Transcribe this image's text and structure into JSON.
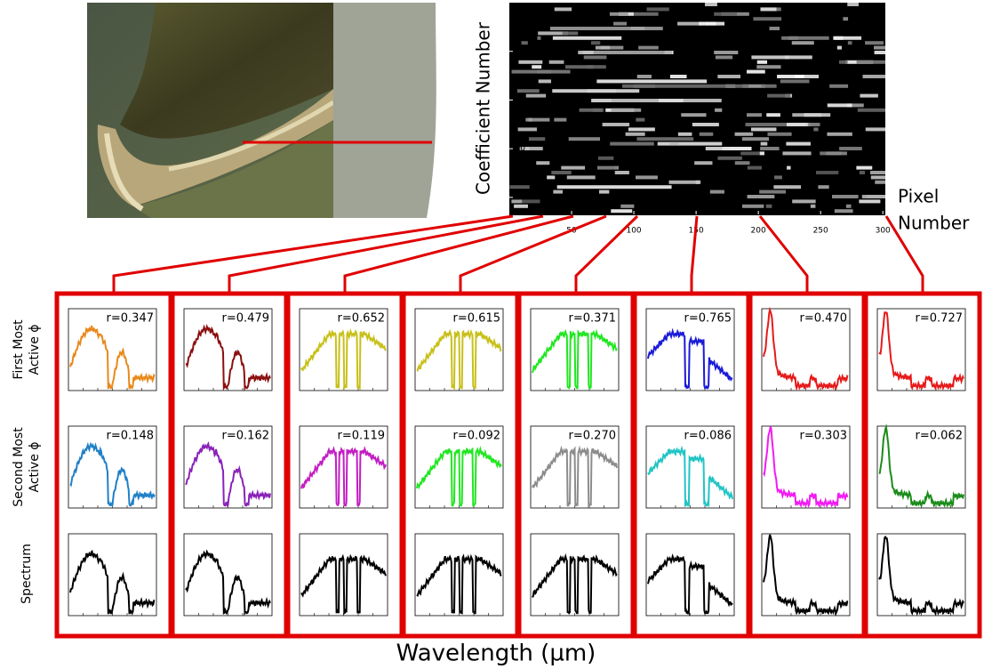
{
  "heatmap": {
    "y_label": "Coefficient Number",
    "x_label": [
      "Pixel",
      "Number"
    ],
    "xlim": [
      0,
      302
    ],
    "ylim": [
      0,
      43.5
    ],
    "xticks": [
      50,
      100,
      150,
      200,
      250,
      300
    ],
    "yticks": [
      10,
      20,
      30,
      40
    ]
  },
  "row_labels": [
    [
      "First Most",
      "Active ϕ"
    ],
    [
      "Second Most",
      "Active ϕ"
    ],
    [
      "Spectrum"
    ]
  ],
  "spectrum_color": "#000000",
  "columns": [
    {
      "first": {
        "r": "r=0.347",
        "color": "#e8891c"
      },
      "second": {
        "r": "r=0.148",
        "color": "#1f80c8"
      }
    },
    {
      "first": {
        "r": "r=0.479",
        "color": "#8b0f0f"
      },
      "second": {
        "r": "r=0.162",
        "color": "#8a22b8"
      }
    },
    {
      "first": {
        "r": "r=0.652",
        "color": "#c8c01a"
      },
      "second": {
        "r": "r=0.119",
        "color": "#c21ec2"
      }
    },
    {
      "first": {
        "r": "r=0.615",
        "color": "#c8c01a"
      },
      "second": {
        "r": "r=0.092",
        "color": "#22e622"
      }
    },
    {
      "first": {
        "r": "r=0.371",
        "color": "#22e622"
      },
      "second": {
        "r": "r=0.270",
        "color": "#8c8c8c"
      }
    },
    {
      "first": {
        "r": "r=0.765",
        "color": "#1a1ad8"
      },
      "second": {
        "r": "r=0.086",
        "color": "#22c4c4"
      }
    },
    {
      "first": {
        "r": "r=0.470",
        "color": "#e61a1a"
      },
      "second": {
        "r": "r=0.303",
        "color": "#f21af2"
      }
    },
    {
      "first": {
        "r": "r=0.727",
        "color": "#e61a1a"
      },
      "second": {
        "r": "r=0.062",
        "color": "#1a8c1a"
      }
    }
  ],
  "x_axis_label": "Wavelength (µm)"
}
